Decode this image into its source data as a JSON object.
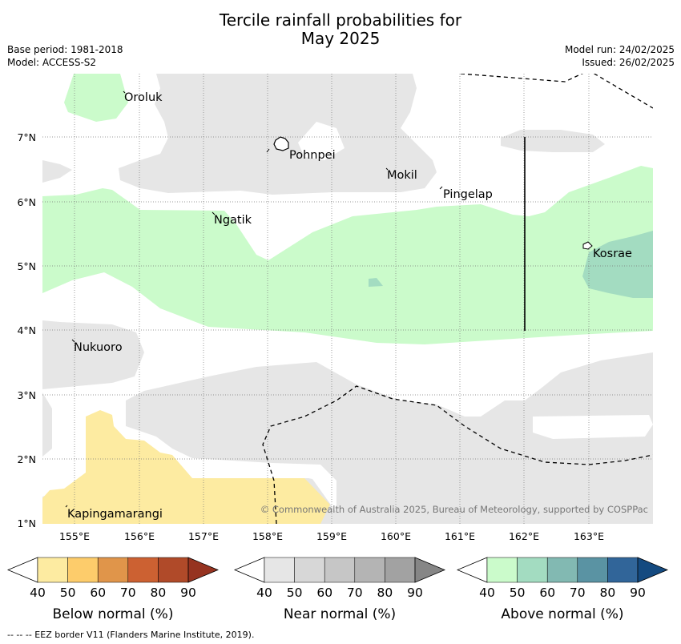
{
  "title": {
    "line1": "Tercile rainfall probabilities for",
    "line2": "May 2025"
  },
  "info": {
    "base_period": "Base period: 1981-2018",
    "model": "Model: ACCESS-S2",
    "model_run": "Model run: 24/02/2025",
    "issued": "Issued: 26/02/2025"
  },
  "map": {
    "lon_labels": [
      "155°E",
      "156°E",
      "157°E",
      "158°E",
      "159°E",
      "160°E",
      "161°E",
      "162°E",
      "163°E"
    ],
    "lat_labels": [
      "7°N",
      "6°N",
      "5°N",
      "4°N",
      "3°N",
      "2°N",
      "1°N"
    ],
    "places": [
      "Oroluk",
      "Pohnpei",
      "Mokil",
      "Pingelap",
      "Ngatik",
      "Kosrae",
      "Nukuoro",
      "Kapingamarangi"
    ],
    "copyright": "© Commonwealth of Australia 2025, Bureau of Meteorology, supported by COSPPac"
  },
  "legend": {
    "ticks": [
      "40",
      "50",
      "60",
      "70",
      "80",
      "90"
    ],
    "below": {
      "title": "Below normal (%)",
      "colors": [
        "#ffffff",
        "#fdeba1",
        "#fdcc6b",
        "#e0954a",
        "#cc6132",
        "#b04a29",
        "#963320"
      ]
    },
    "near": {
      "title": "Near normal (%)",
      "colors": [
        "#ffffff",
        "#e6e6e6",
        "#d7d7d7",
        "#c6c6c6",
        "#b4b4b4",
        "#a2a2a2",
        "#868686"
      ]
    },
    "above": {
      "title": "Above normal (%)",
      "colors": [
        "#ffffff",
        "#cbfbcb",
        "#a3dcc1",
        "#82b9b2",
        "#5a93a3",
        "#316599",
        "#144a80"
      ]
    }
  },
  "footnote": "--  --  -- EEZ border V11 (Flanders Marine Institute, 2019)."
}
